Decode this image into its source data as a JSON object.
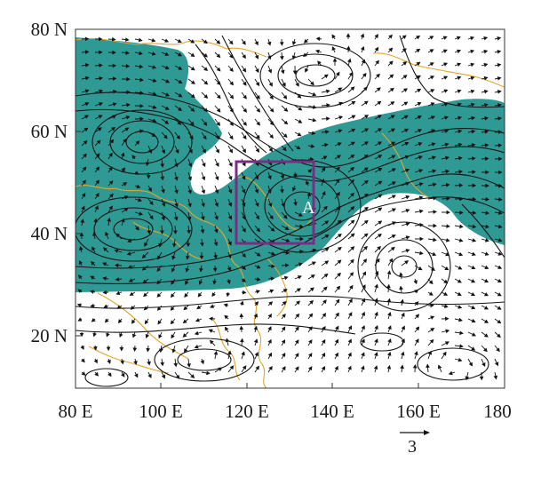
{
  "map": {
    "lat_labels": [
      "80 N",
      "60 N",
      "40 N",
      "20 N"
    ],
    "lon_labels": [
      "80 E",
      "100 E",
      "120 E",
      "140 E",
      "160 E",
      "180"
    ],
    "marker_label": "A",
    "reference_vector_label": "3",
    "colors": {
      "shading": "#2f9a94",
      "coastline": "#e3a52b",
      "streamline": "#141414",
      "box": "#7a2e83",
      "frame": "#333333"
    },
    "extent": {
      "lon": [
        80,
        180
      ],
      "lat": [
        10,
        80
      ]
    },
    "box_region": {
      "lon": [
        118,
        136
      ],
      "lat": [
        38,
        54
      ]
    },
    "marker_position": {
      "lon": 132,
      "lat": 45
    }
  }
}
